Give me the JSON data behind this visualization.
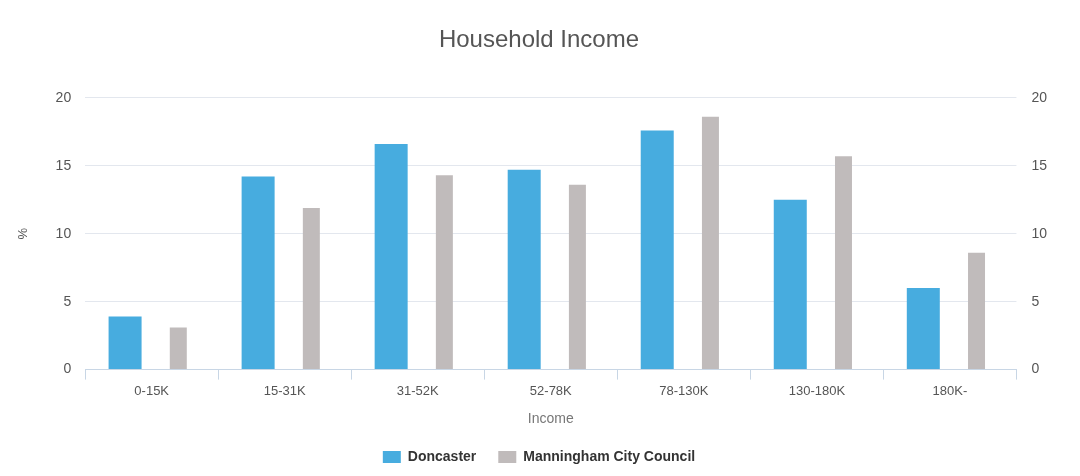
{
  "chart_data": {
    "type": "bar",
    "title": "Household Income",
    "xlabel": "Income",
    "ylabel": "%",
    "categories": [
      "0-15K",
      "15-31K",
      "31-52K",
      "52-78K",
      "78-130K",
      "130-180K",
      "180K-"
    ],
    "series": [
      {
        "name": "Doncaster",
        "color": "#47acdf",
        "values": [
          3.9,
          14.2,
          16.6,
          14.7,
          17.6,
          12.5,
          6.0
        ]
      },
      {
        "name": "Manningham City Council",
        "color": "#c0bbbb",
        "values": [
          3.1,
          11.9,
          14.3,
          13.6,
          18.6,
          15.7,
          8.6
        ]
      }
    ],
    "ylim": [
      0,
      20
    ],
    "yticks": [
      0,
      5,
      10,
      15,
      20
    ],
    "y2lim": [
      0,
      20
    ],
    "y2ticks": [
      0,
      5,
      10,
      15,
      20
    ],
    "grid": "y",
    "legend": "bottom"
  }
}
